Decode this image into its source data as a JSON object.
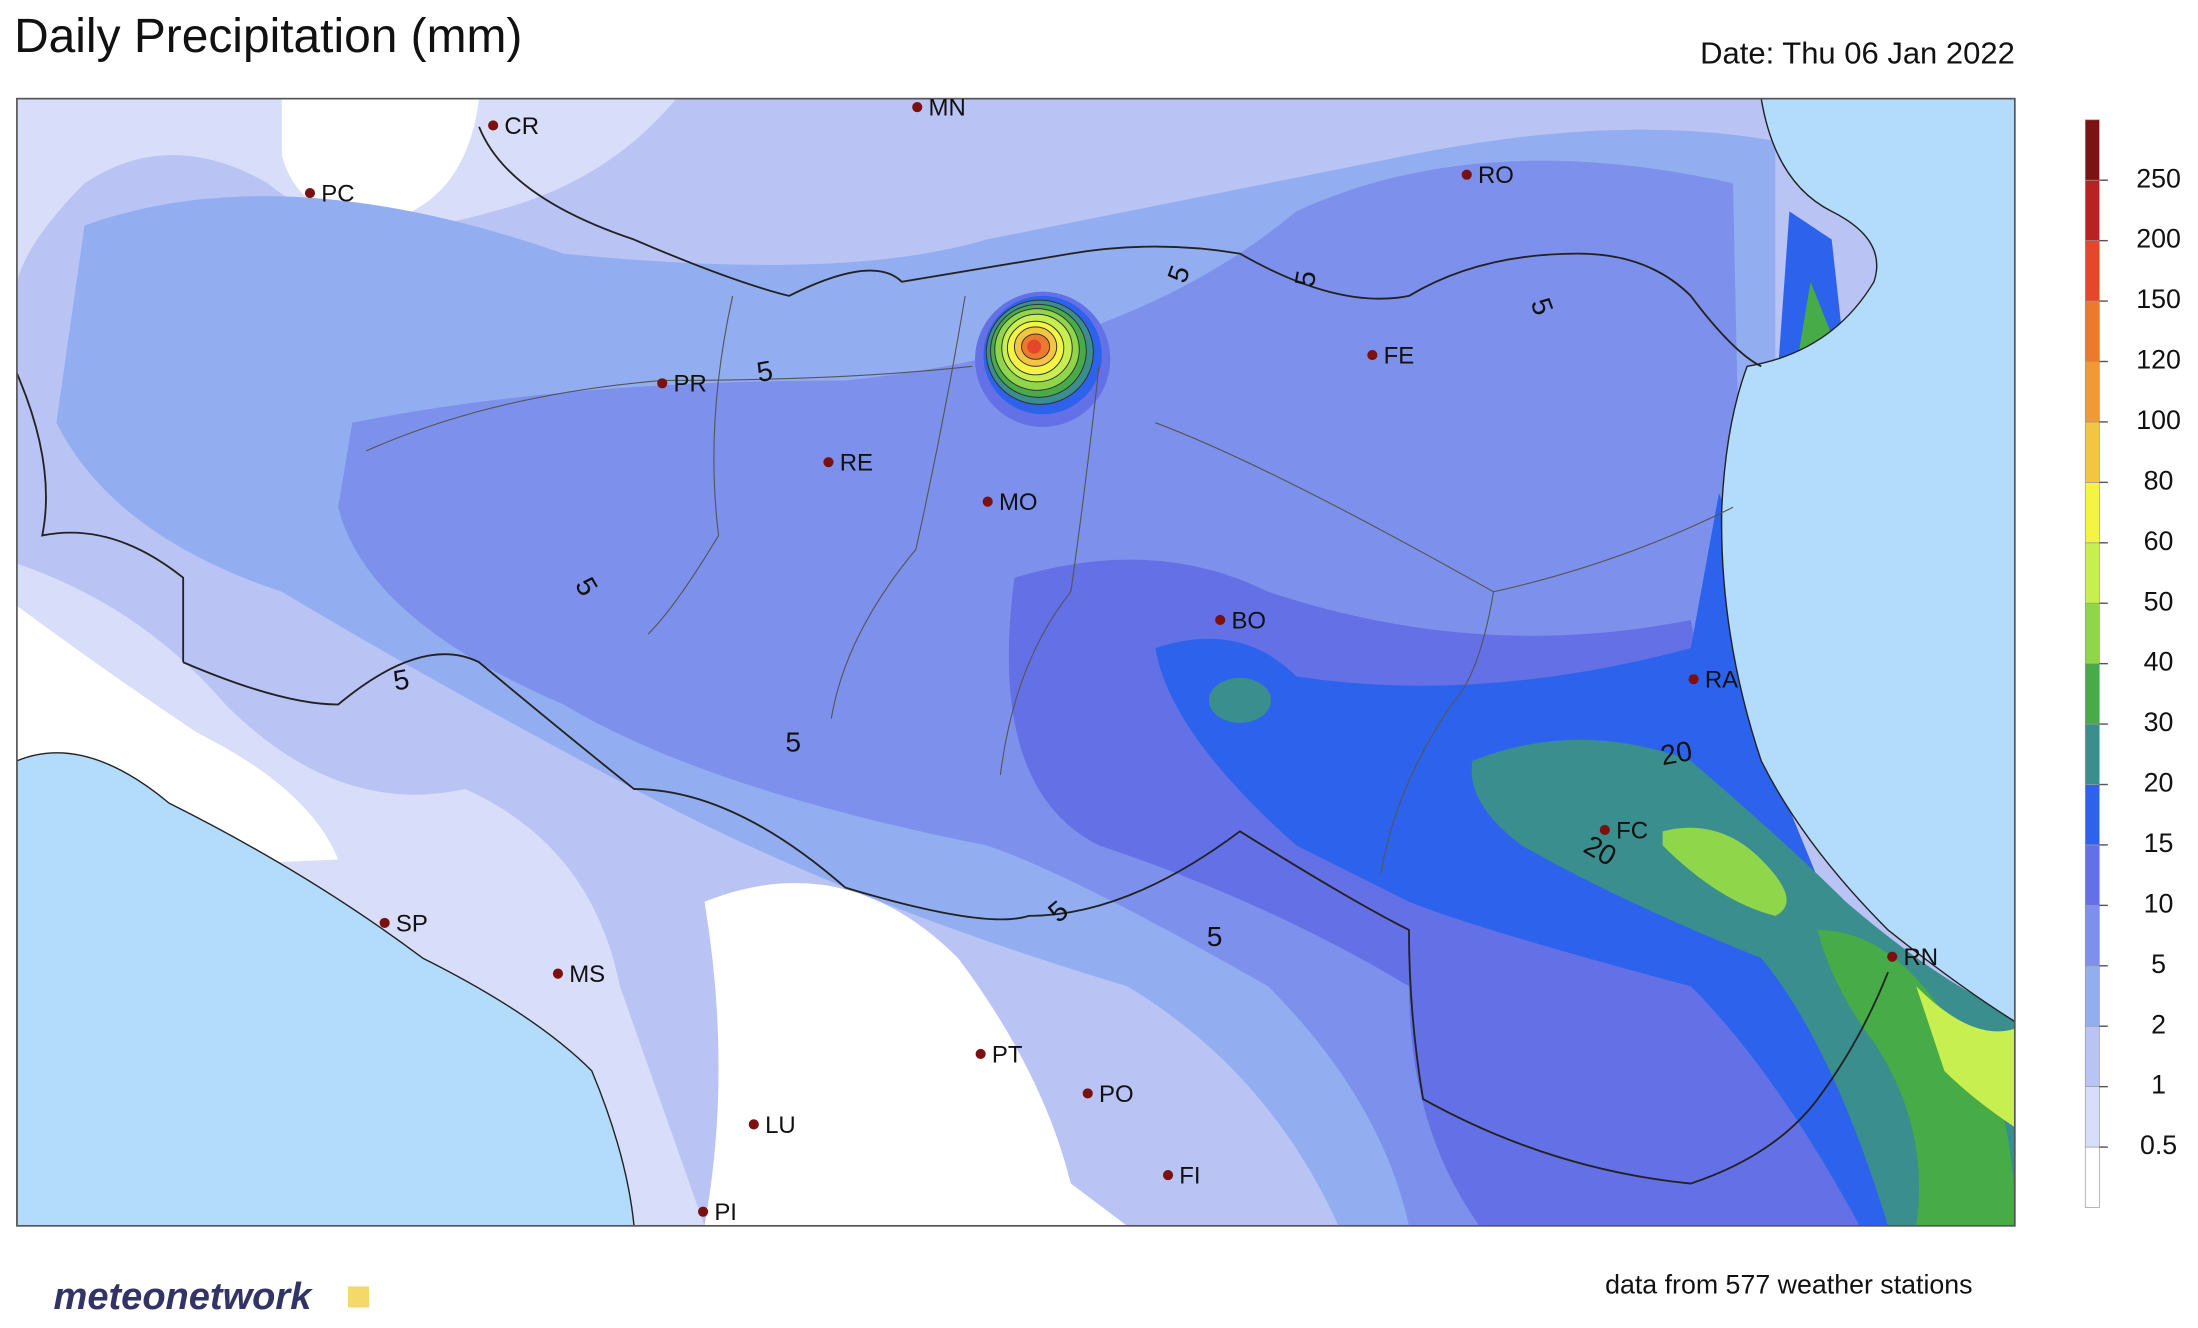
{
  "header": {
    "title": "Daily Precipitation (mm)",
    "date": "Date: Thu 06 Jan 2022"
  },
  "cities": [
    "PC",
    "CR",
    "MN",
    "RO",
    "FE",
    "PR",
    "RE",
    "MO",
    "BO",
    "RA",
    "FC",
    "RN",
    "SP",
    "MS",
    "PT",
    "PO",
    "LU",
    "FI",
    "PI"
  ],
  "contour_labels": [
    5,
    5,
    5,
    5,
    5,
    5,
    5,
    5,
    5,
    20,
    20
  ],
  "colorbar": {
    "levels": [
      0.5,
      1,
      2,
      5,
      10,
      15,
      20,
      30,
      40,
      50,
      60,
      80,
      100,
      120,
      150,
      200,
      250
    ],
    "colors": [
      "#ffffff",
      "#d8ddf9",
      "#b9c4f5",
      "#93aef0",
      "#7d91ec",
      "#6470e5",
      "#2d62ec",
      "#3a8e8e",
      "#47ab47",
      "#8fd64b",
      "#c8ef50",
      "#f4f542",
      "#f4c443",
      "#ef9a36",
      "#ec7a2e",
      "#e4472a",
      "#b82222",
      "#7a1414"
    ]
  },
  "footer": {
    "logo": "meteonetwork",
    "note": "data from 577 weather stations"
  }
}
